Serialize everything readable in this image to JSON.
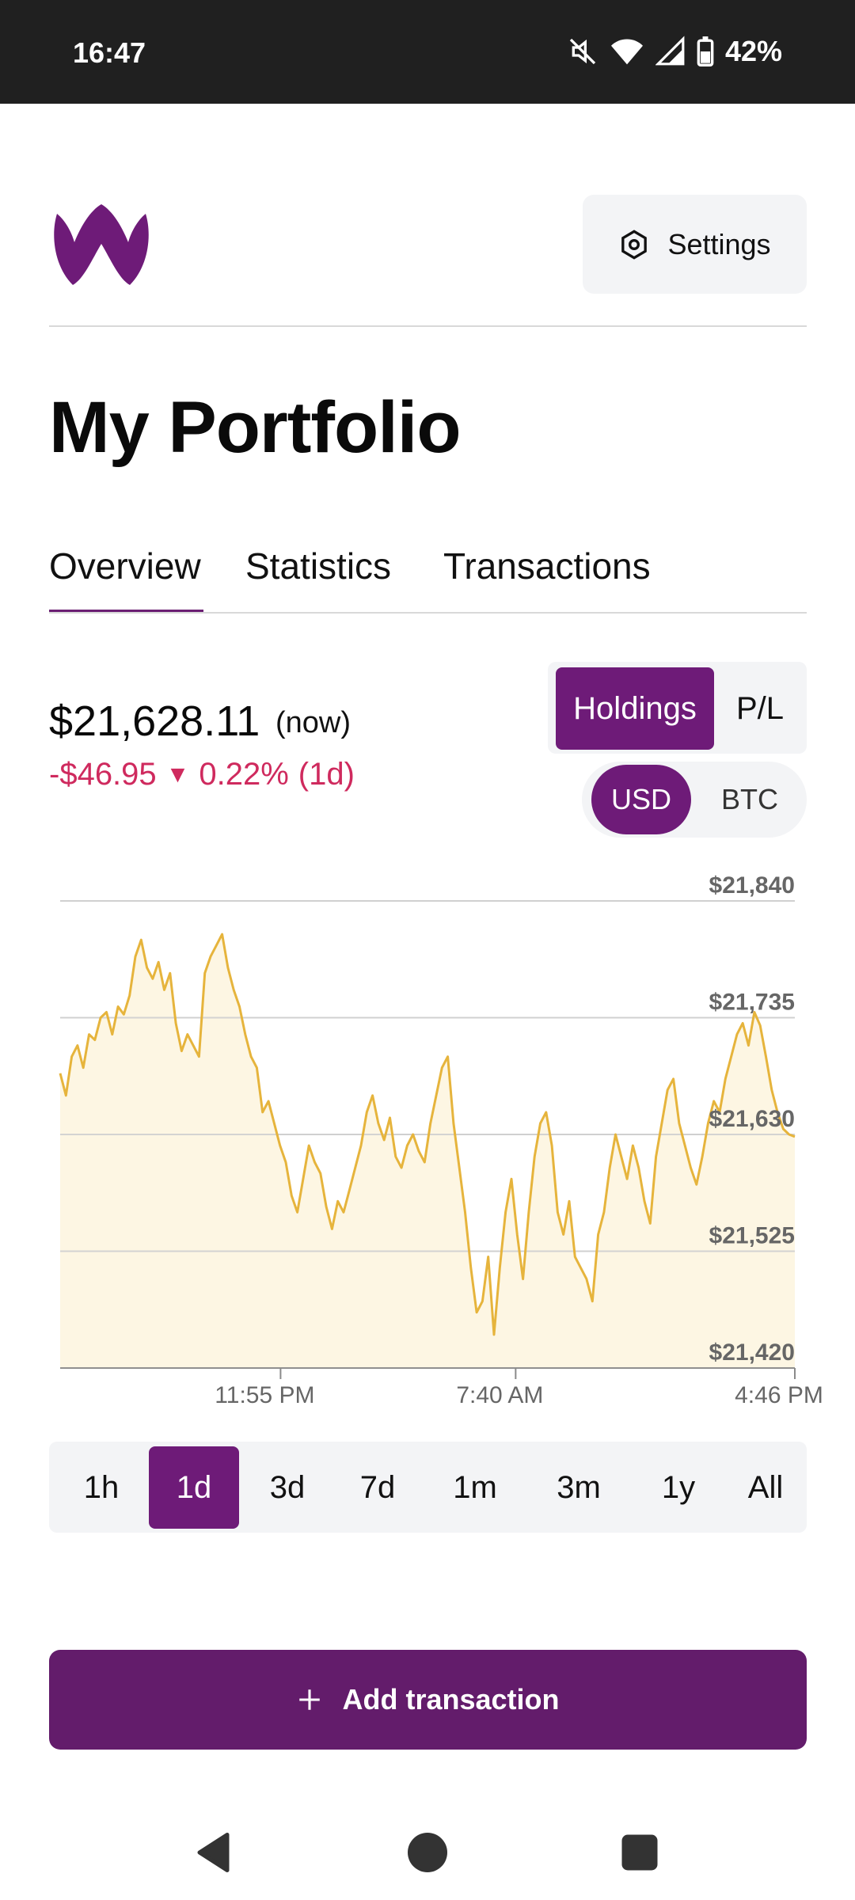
{
  "status_bar": {
    "time": "16:47",
    "battery": "42%",
    "icons": [
      "mute-icon",
      "wifi-icon",
      "signal-icon",
      "battery-icon"
    ]
  },
  "header": {
    "logo": "w-logo",
    "settings_label": "Settings",
    "settings_icon": "gear-icon"
  },
  "page": {
    "title": "My Portfolio"
  },
  "tabs": [
    {
      "label": "Overview",
      "active": true
    },
    {
      "label": "Statistics",
      "active": false
    },
    {
      "label": "Transactions",
      "active": false
    }
  ],
  "summary": {
    "total": "$21,628.11",
    "now_label": "(now)",
    "change_amount": "-$46.95",
    "change_arrow": "▼",
    "change_percent": "0.22%",
    "change_period": "(1d)"
  },
  "view_toggle": {
    "holdings": "Holdings",
    "pl": "P/L",
    "selected": "Holdings"
  },
  "currency_toggle": {
    "usd": "USD",
    "btc": "BTC",
    "selected": "USD"
  },
  "chart_data": {
    "type": "area",
    "title": "",
    "xlabel": "",
    "ylabel": "",
    "ylim": [
      21420,
      21840
    ],
    "yticks": [
      "$21,840",
      "$21,735",
      "$21,630",
      "$21,525",
      "$21,420"
    ],
    "xticks": [
      "11:55 PM",
      "7:40 AM",
      "4:46 PM"
    ],
    "line_color": "#e6b43c",
    "fill_color": "#fdf6e3",
    "values": [
      21685,
      21665,
      21700,
      21710,
      21690,
      21720,
      21715,
      21735,
      21740,
      21720,
      21745,
      21738,
      21755,
      21790,
      21805,
      21780,
      21770,
      21785,
      21760,
      21775,
      21730,
      21705,
      21720,
      21710,
      21700,
      21775,
      21790,
      21800,
      21810,
      21780,
      21760,
      21745,
      21720,
      21700,
      21690,
      21650,
      21660,
      21640,
      21620,
      21605,
      21575,
      21560,
      21590,
      21620,
      21605,
      21595,
      21565,
      21545,
      21570,
      21560,
      21580,
      21600,
      21620,
      21650,
      21665,
      21640,
      21625,
      21645,
      21610,
      21600,
      21620,
      21630,
      21615,
      21605,
      21640,
      21665,
      21690,
      21700,
      21640,
      21600,
      21560,
      21510,
      21470,
      21480,
      21520,
      21450,
      21510,
      21560,
      21590,
      21540,
      21500,
      21560,
      21610,
      21640,
      21650,
      21620,
      21560,
      21540,
      21570,
      21520,
      21510,
      21500,
      21480,
      21540,
      21560,
      21600,
      21630,
      21610,
      21590,
      21620,
      21600,
      21570,
      21550,
      21610,
      21640,
      21670,
      21680,
      21640,
      21620,
      21600,
      21585,
      21610,
      21640,
      21660,
      21650,
      21680,
      21700,
      21720,
      21730,
      21710,
      21740,
      21728,
      21700,
      21670,
      21650,
      21635,
      21630,
      21628
    ],
    "x_tick_positions": [
      0.3,
      0.62,
      1.0
    ]
  },
  "range_selector": {
    "options": [
      "1h",
      "1d",
      "3d",
      "7d",
      "1m",
      "3m",
      "1y",
      "All"
    ],
    "selected": "1d"
  },
  "add_button": {
    "label": "Add transaction",
    "icon": "plus-icon"
  },
  "nav": {
    "icons": [
      "back-icon",
      "home-icon",
      "recents-icon"
    ]
  }
}
